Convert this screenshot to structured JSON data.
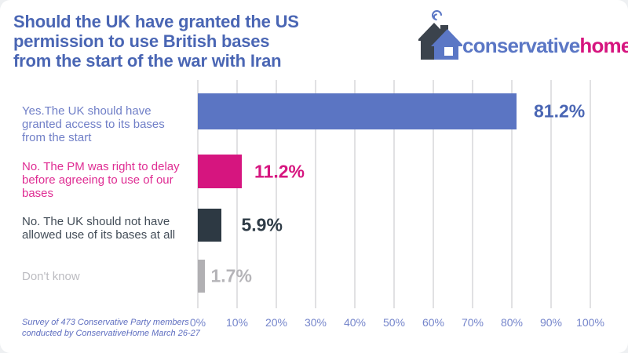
{
  "header": {
    "title_lines": [
      "Should the UK have granted the US",
      "permission to use British bases",
      "from the start of the war with Iran"
    ],
    "logo": {
      "brand_blue": "conservative",
      "brand_pink": "home",
      "blue": "#5b77c5",
      "pink": "#d6157f",
      "house_dark": "#3b434c"
    }
  },
  "colors": {
    "title": "#4a66b4",
    "axis_ticks": "#7585cb",
    "grid": "#e1e1e3",
    "footer_note": "#5e6ec0",
    "page_bg": "#ffffff"
  },
  "chart_data": {
    "type": "bar",
    "orientation": "horizontal",
    "title": "Should the UK have granted the US permission to use British bases from the start of the war with Iran",
    "categories": [
      "Yes.The UK should have granted access to its bases from the start",
      "No. The PM was right to delay before agreeing to use of our bases",
      "No. The UK should not have allowed use of its bases at all",
      "Don't know"
    ],
    "values": [
      81.2,
      11.2,
      5.9,
      1.7
    ],
    "value_labels": [
      "81.2%",
      "11.2%",
      "5.9%",
      "1.7%"
    ],
    "bar_colors": [
      "#5b75c3",
      "#d6157f",
      "#2d3943",
      "#b1b0b3"
    ],
    "category_colors": [
      "#707fc7",
      "#df2d93",
      "#424c57",
      "#bcbcc1"
    ],
    "value_colors": [
      "#4a66b4",
      "#d6157f",
      "#2e3b46",
      "#b5b4b8"
    ],
    "xlim": [
      0,
      100
    ],
    "x_ticks": [
      "0%",
      "10%",
      "20%",
      "30%",
      "40%",
      "50%",
      "60%",
      "70%",
      "80%",
      "90%",
      "100%"
    ],
    "grid": true,
    "legend": "none"
  },
  "footer": {
    "note_lines": [
      "Survey of 473 Conservative Party members",
      "conducted by ConservativeHome March 26-27"
    ]
  }
}
